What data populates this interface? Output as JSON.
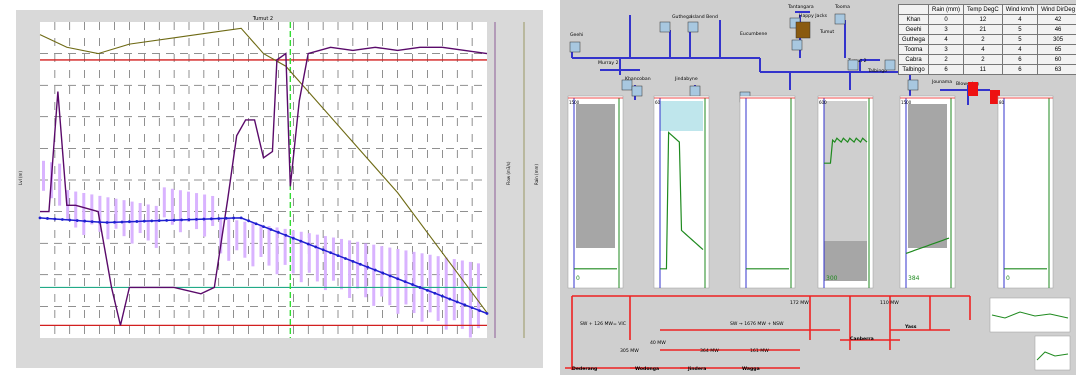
{
  "left_chart": {
    "title": "Tumut 2",
    "y_left_label": "Lvl (m)",
    "y_right1_label": "Flow (m3/s)",
    "y_right2_label": "Rain (mm)",
    "colors": {
      "background": "#ffffff",
      "frame": "#d9d9d9",
      "level_series": "#1f1fd0",
      "flow_series": "#5a0a6a",
      "rain_bars": "#d9b3ff",
      "storage_series": "#6e6a14",
      "max_line": "#d21f1f",
      "min_line": "#d21f1f",
      "target_line": "#22aa88",
      "current_time_line": "#33dd33"
    }
  },
  "right_panel": {
    "stations": [
      {
        "name": "Guthega"
      },
      {
        "name": "Island Bend"
      },
      {
        "name": "Tantangara"
      },
      {
        "name": "Happy Jacks"
      },
      {
        "name": "Tooma"
      },
      {
        "name": "Geehi"
      },
      {
        "name": "Eucumbene"
      },
      {
        "name": "Tumut"
      },
      {
        "name": "Murray 2"
      },
      {
        "name": "Khancoban"
      },
      {
        "name": "Jindabyne"
      },
      {
        "name": "Tumut 2"
      },
      {
        "name": "Talbingo"
      },
      {
        "name": "Jounama"
      },
      {
        "name": "Blowering"
      }
    ],
    "table": {
      "headers": [
        "",
        "Rain (mm)",
        "Temp DegC",
        "Wind km/h",
        "Wind DirDeg"
      ],
      "rows": [
        [
          "Khan",
          "0",
          "12",
          "4",
          "42"
        ],
        [
          "Geehi",
          "3",
          "21",
          "5",
          "46"
        ],
        [
          "Guthega",
          "4",
          "2",
          "5",
          "305"
        ],
        [
          "Tooma",
          "3",
          "4",
          "4",
          "65"
        ],
        [
          "Cabra",
          "2",
          "2",
          "6",
          "60"
        ],
        [
          "Talbingo",
          "6",
          "11",
          "6",
          "63"
        ]
      ]
    },
    "mini_charts": [
      {
        "top_label": "1500",
        "annotation": "0"
      },
      {
        "top_label": "60",
        "annotation": ""
      },
      {
        "top_label": "",
        "annotation": ""
      },
      {
        "top_label": "600",
        "annotation": "300"
      },
      {
        "top_label": "1500",
        "annotation": "384"
      },
      {
        "top_label": "80",
        "annotation": "0"
      }
    ],
    "grid": {
      "flows": [
        {
          "text": "SW + 126 MW= VIC"
        },
        {
          "text": "SW → 1676 MW + NSW"
        },
        {
          "text": "172 MW"
        },
        {
          "text": "110 MW"
        },
        {
          "text": "305 MW"
        },
        {
          "text": "364 MW"
        },
        {
          "text": "161 MW"
        },
        {
          "text": "40 MW"
        }
      ],
      "substations": [
        {
          "name": "Dederang"
        },
        {
          "name": "Wodonga"
        },
        {
          "name": "Jindera"
        },
        {
          "name": "Wagga"
        },
        {
          "name": "Canberra"
        },
        {
          "name": "Yass"
        }
      ]
    },
    "colors": {
      "water": "#3333cc",
      "power_line": "#ee2222",
      "gate_fill": "#a8c8e0",
      "alarm": "#ee1111",
      "mini_bg": "#ffffff",
      "gray_fill": "#a6a6a6",
      "cyan_fill": "#bfe6ec",
      "green_series": "#1f8a1f",
      "yellow_series": "#e0d000"
    }
  }
}
